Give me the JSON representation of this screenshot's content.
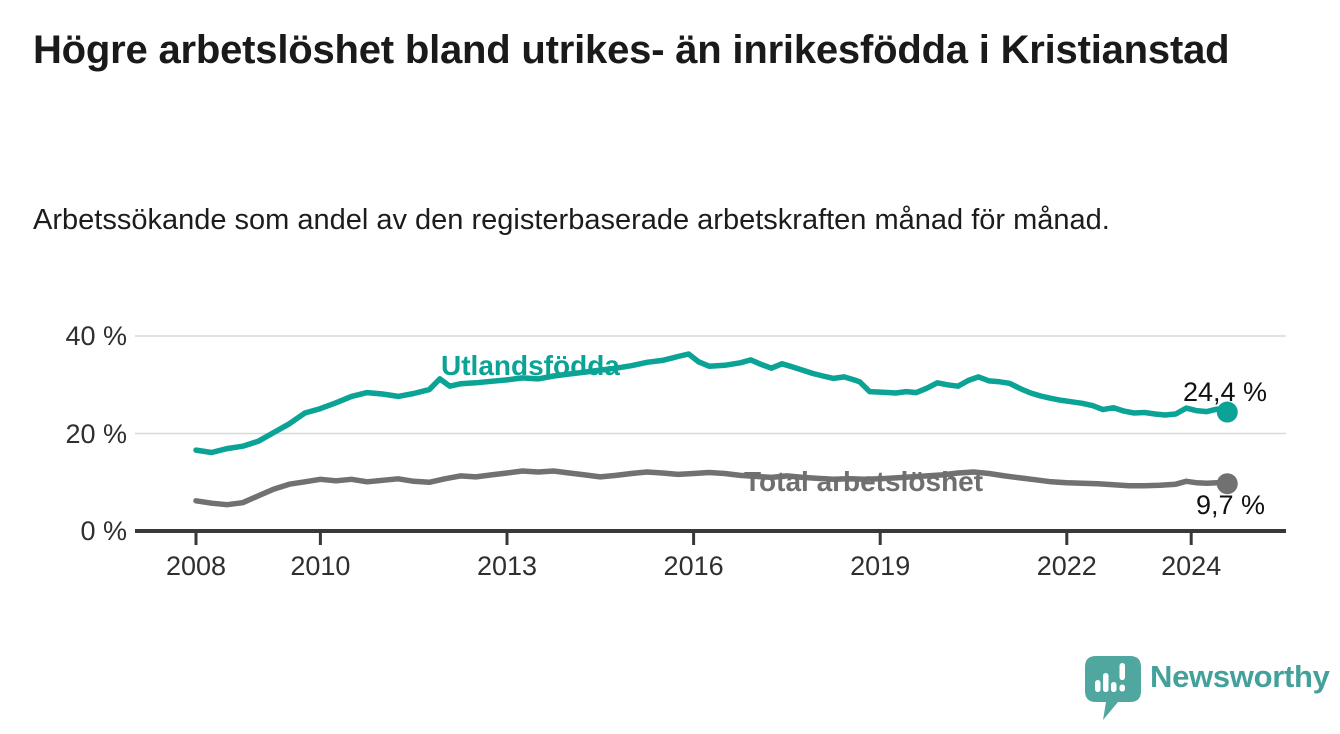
{
  "header": {
    "title": "Högre arbetslöshet bland utrikes- än inrikesfödda i Kristianstad",
    "subtitle": "Arbetssökande som andel av den registerbaserade arbetskraften månad för månad."
  },
  "chart_data": {
    "type": "line",
    "title": "Högre arbetslöshet bland utrikes- än inrikesfödda i Kristianstad",
    "subtitle": "Arbetssökande som andel av den registerbaserade arbetskraften månad för månad.",
    "unit": "%",
    "grid": "horizontal",
    "legend_position": "inline-labels-on-lines",
    "x_axis": {
      "ticks": [
        2008,
        2010,
        2013,
        2016,
        2019,
        2022,
        2024
      ],
      "range_start": 2007.9,
      "range_end": 2025.5
    },
    "y_axis": {
      "tick_values": [
        0,
        20,
        40
      ],
      "tick_labels": [
        "0 %",
        "20 %",
        "40 %"
      ],
      "min": 0,
      "max": 44
    },
    "series": [
      {
        "name": "Utlandsfödda",
        "color": "#0ba396",
        "end_label": "24,4 %",
        "end_value": 24.4,
        "points": [
          [
            2008.0,
            16.6
          ],
          [
            2008.25,
            16.1
          ],
          [
            2008.5,
            16.9
          ],
          [
            2008.75,
            17.4
          ],
          [
            2009.0,
            18.4
          ],
          [
            2009.25,
            20.2
          ],
          [
            2009.5,
            22.0
          ],
          [
            2009.75,
            24.2
          ],
          [
            2010.0,
            25.1
          ],
          [
            2010.25,
            26.3
          ],
          [
            2010.5,
            27.6
          ],
          [
            2010.75,
            28.4
          ],
          [
            2011.0,
            28.1
          ],
          [
            2011.25,
            27.6
          ],
          [
            2011.5,
            28.2
          ],
          [
            2011.75,
            29.0
          ],
          [
            2011.92,
            31.2
          ],
          [
            2012.08,
            29.7
          ],
          [
            2012.25,
            30.2
          ],
          [
            2012.5,
            30.4
          ],
          [
            2012.75,
            30.7
          ],
          [
            2013.0,
            31.0
          ],
          [
            2013.25,
            31.4
          ],
          [
            2013.5,
            31.2
          ],
          [
            2013.75,
            31.8
          ],
          [
            2014.0,
            32.2
          ],
          [
            2014.25,
            32.6
          ],
          [
            2014.5,
            33.0
          ],
          [
            2014.75,
            33.4
          ],
          [
            2015.0,
            33.9
          ],
          [
            2015.25,
            34.6
          ],
          [
            2015.5,
            35.0
          ],
          [
            2015.75,
            35.8
          ],
          [
            2015.92,
            36.3
          ],
          [
            2016.08,
            34.7
          ],
          [
            2016.25,
            33.8
          ],
          [
            2016.5,
            34.0
          ],
          [
            2016.75,
            34.5
          ],
          [
            2016.92,
            35.1
          ],
          [
            2017.08,
            34.2
          ],
          [
            2017.25,
            33.4
          ],
          [
            2017.42,
            34.3
          ],
          [
            2017.58,
            33.7
          ],
          [
            2017.75,
            33.0
          ],
          [
            2017.92,
            32.3
          ],
          [
            2018.08,
            31.8
          ],
          [
            2018.25,
            31.3
          ],
          [
            2018.42,
            31.6
          ],
          [
            2018.58,
            31.0
          ],
          [
            2018.67,
            30.6
          ],
          [
            2018.83,
            28.6
          ],
          [
            2019.0,
            28.5
          ],
          [
            2019.25,
            28.3
          ],
          [
            2019.42,
            28.6
          ],
          [
            2019.58,
            28.4
          ],
          [
            2019.75,
            29.3
          ],
          [
            2019.92,
            30.4
          ],
          [
            2020.08,
            30.0
          ],
          [
            2020.25,
            29.7
          ],
          [
            2020.42,
            30.9
          ],
          [
            2020.58,
            31.6
          ],
          [
            2020.75,
            30.8
          ],
          [
            2020.92,
            30.6
          ],
          [
            2021.08,
            30.3
          ],
          [
            2021.25,
            29.2
          ],
          [
            2021.42,
            28.3
          ],
          [
            2021.58,
            27.7
          ],
          [
            2021.75,
            27.2
          ],
          [
            2021.92,
            26.8
          ],
          [
            2022.08,
            26.5
          ],
          [
            2022.25,
            26.2
          ],
          [
            2022.42,
            25.7
          ],
          [
            2022.58,
            24.9
          ],
          [
            2022.75,
            25.3
          ],
          [
            2022.92,
            24.6
          ],
          [
            2023.08,
            24.2
          ],
          [
            2023.25,
            24.3
          ],
          [
            2023.42,
            24.0
          ],
          [
            2023.58,
            23.8
          ],
          [
            2023.75,
            24.0
          ],
          [
            2023.92,
            25.2
          ],
          [
            2024.08,
            24.7
          ],
          [
            2024.25,
            24.5
          ],
          [
            2024.42,
            25.0
          ],
          [
            2024.58,
            24.4
          ]
        ]
      },
      {
        "name": "Total arbetslöshet",
        "color": "#717171",
        "end_label": "9,7 %",
        "end_value": 9.7,
        "points": [
          [
            2008.0,
            6.2
          ],
          [
            2008.25,
            5.7
          ],
          [
            2008.5,
            5.4
          ],
          [
            2008.75,
            5.8
          ],
          [
            2009.0,
            7.2
          ],
          [
            2009.25,
            8.6
          ],
          [
            2009.5,
            9.6
          ],
          [
            2009.75,
            10.1
          ],
          [
            2010.0,
            10.6
          ],
          [
            2010.25,
            10.3
          ],
          [
            2010.5,
            10.6
          ],
          [
            2010.75,
            10.1
          ],
          [
            2011.0,
            10.4
          ],
          [
            2011.25,
            10.7
          ],
          [
            2011.5,
            10.2
          ],
          [
            2011.75,
            10.0
          ],
          [
            2012.0,
            10.7
          ],
          [
            2012.25,
            11.3
          ],
          [
            2012.5,
            11.1
          ],
          [
            2012.75,
            11.5
          ],
          [
            2013.0,
            11.9
          ],
          [
            2013.25,
            12.3
          ],
          [
            2013.5,
            12.1
          ],
          [
            2013.75,
            12.3
          ],
          [
            2014.0,
            11.9
          ],
          [
            2014.25,
            11.5
          ],
          [
            2014.5,
            11.1
          ],
          [
            2014.75,
            11.4
          ],
          [
            2015.0,
            11.8
          ],
          [
            2015.25,
            12.1
          ],
          [
            2015.5,
            11.9
          ],
          [
            2015.75,
            11.6
          ],
          [
            2016.0,
            11.8
          ],
          [
            2016.25,
            12.0
          ],
          [
            2016.5,
            11.8
          ],
          [
            2016.75,
            11.4
          ],
          [
            2017.0,
            11.2
          ],
          [
            2017.25,
            11.0
          ],
          [
            2017.5,
            11.3
          ],
          [
            2017.75,
            11.0
          ],
          [
            2018.0,
            10.8
          ],
          [
            2018.25,
            10.6
          ],
          [
            2018.5,
            10.7
          ],
          [
            2018.75,
            10.6
          ],
          [
            2019.0,
            10.7
          ],
          [
            2019.25,
            10.9
          ],
          [
            2019.5,
            11.1
          ],
          [
            2019.75,
            11.3
          ],
          [
            2020.0,
            11.5
          ],
          [
            2020.25,
            11.9
          ],
          [
            2020.5,
            12.1
          ],
          [
            2020.75,
            11.8
          ],
          [
            2021.0,
            11.3
          ],
          [
            2021.25,
            10.9
          ],
          [
            2021.5,
            10.5
          ],
          [
            2021.75,
            10.1
          ],
          [
            2022.0,
            9.9
          ],
          [
            2022.25,
            9.8
          ],
          [
            2022.5,
            9.7
          ],
          [
            2022.75,
            9.5
          ],
          [
            2023.0,
            9.3
          ],
          [
            2023.25,
            9.3
          ],
          [
            2023.5,
            9.4
          ],
          [
            2023.75,
            9.6
          ],
          [
            2023.92,
            10.2
          ],
          [
            2024.08,
            9.9
          ],
          [
            2024.25,
            9.8
          ],
          [
            2024.42,
            9.9
          ],
          [
            2024.58,
            9.7
          ]
        ]
      }
    ]
  },
  "footer": {
    "brand": "Newsworthy",
    "logo_icon": "bar-chart-speech-bubble-icon",
    "brand_color": "#44a09b"
  },
  "colors": {
    "background": "#ffffff",
    "title_text": "#1a1a1a",
    "subtitle_text": "#1c1c1c",
    "axis_line": "#383838",
    "axis_text": "#2f2f2f",
    "gridline": "#d9d9d9",
    "series_teal": "#0ba396",
    "series_gray": "#717171",
    "value_label_text": "#111111"
  }
}
